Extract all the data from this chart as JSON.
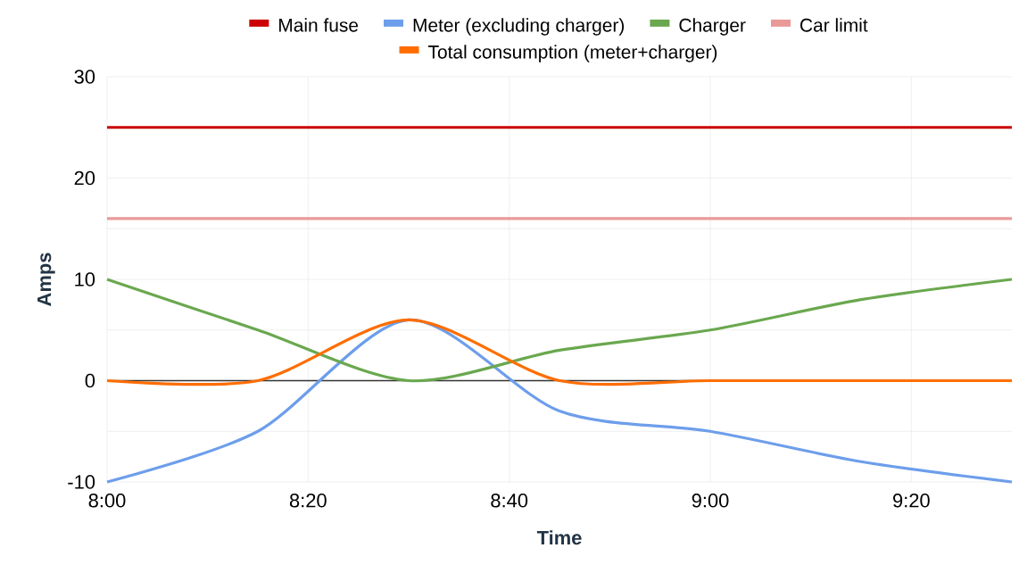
{
  "chart_data": {
    "type": "line",
    "xlabel": "Time",
    "ylabel": "Amps",
    "x": [
      8,
      8.25,
      8.5,
      8.75,
      9,
      9.25,
      9.5
    ],
    "series": [
      {
        "name": "Main fuse",
        "color": "#cc0000",
        "values": [
          25,
          25,
          25,
          25,
          25,
          25,
          25
        ]
      },
      {
        "name": "Meter (excluding charger)",
        "color": "#6d9eeb",
        "values": [
          -10,
          -5,
          6,
          -3,
          -5,
          -8,
          -10
        ]
      },
      {
        "name": "Charger",
        "color": "#6aa84f",
        "values": [
          10,
          5,
          0,
          3,
          5,
          8,
          10
        ]
      },
      {
        "name": "Car limit",
        "color": "#ea9999",
        "values": [
          16,
          16,
          16,
          16,
          16,
          16,
          16
        ]
      },
      {
        "name": "Total consumption (meter+charger)",
        "color": "#ff6d01",
        "values": [
          0,
          0,
          6,
          0,
          0,
          0,
          0
        ]
      }
    ],
    "xlim": [
      8,
      9.5
    ],
    "xticks": [
      {
        "value": 8,
        "label": "8:00"
      },
      {
        "value": 8.3333,
        "label": "8:20"
      },
      {
        "value": 8.6667,
        "label": "8:40"
      },
      {
        "value": 9,
        "label": "9:00"
      },
      {
        "value": 9.3333,
        "label": "9:20"
      }
    ],
    "ylim": [
      -10,
      30
    ],
    "yticks": [
      -10,
      0,
      10,
      20,
      30
    ],
    "ref_lines": [
      {
        "axis": "y",
        "value": 0,
        "color": "#333333"
      }
    ],
    "grid": true,
    "legend": "top",
    "marker": "none",
    "line_style": "solid"
  }
}
